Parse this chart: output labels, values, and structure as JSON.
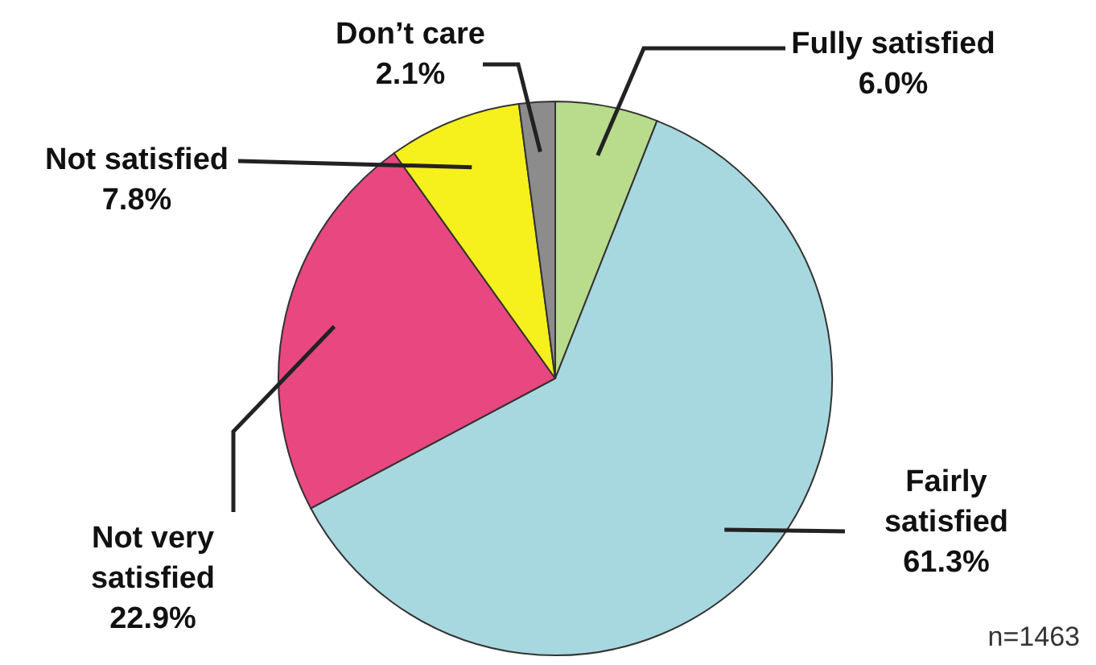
{
  "chart_data": {
    "type": "pie",
    "categories": [
      "Fully satisfied",
      "Fairly satisfied",
      "Not very satisfied",
      "Not satisfied",
      "Don’t care"
    ],
    "values": [
      6.0,
      61.3,
      22.9,
      7.8,
      2.1
    ],
    "colors": [
      "#b8db8c",
      "#a8d8df",
      "#e8477f",
      "#f6f01c",
      "#8c8c8c"
    ],
    "value_labels": [
      "6.0%",
      "61.3%",
      "22.9%",
      "7.8%",
      "2.1%"
    ],
    "annotations": [
      "n=1463"
    ]
  }
}
